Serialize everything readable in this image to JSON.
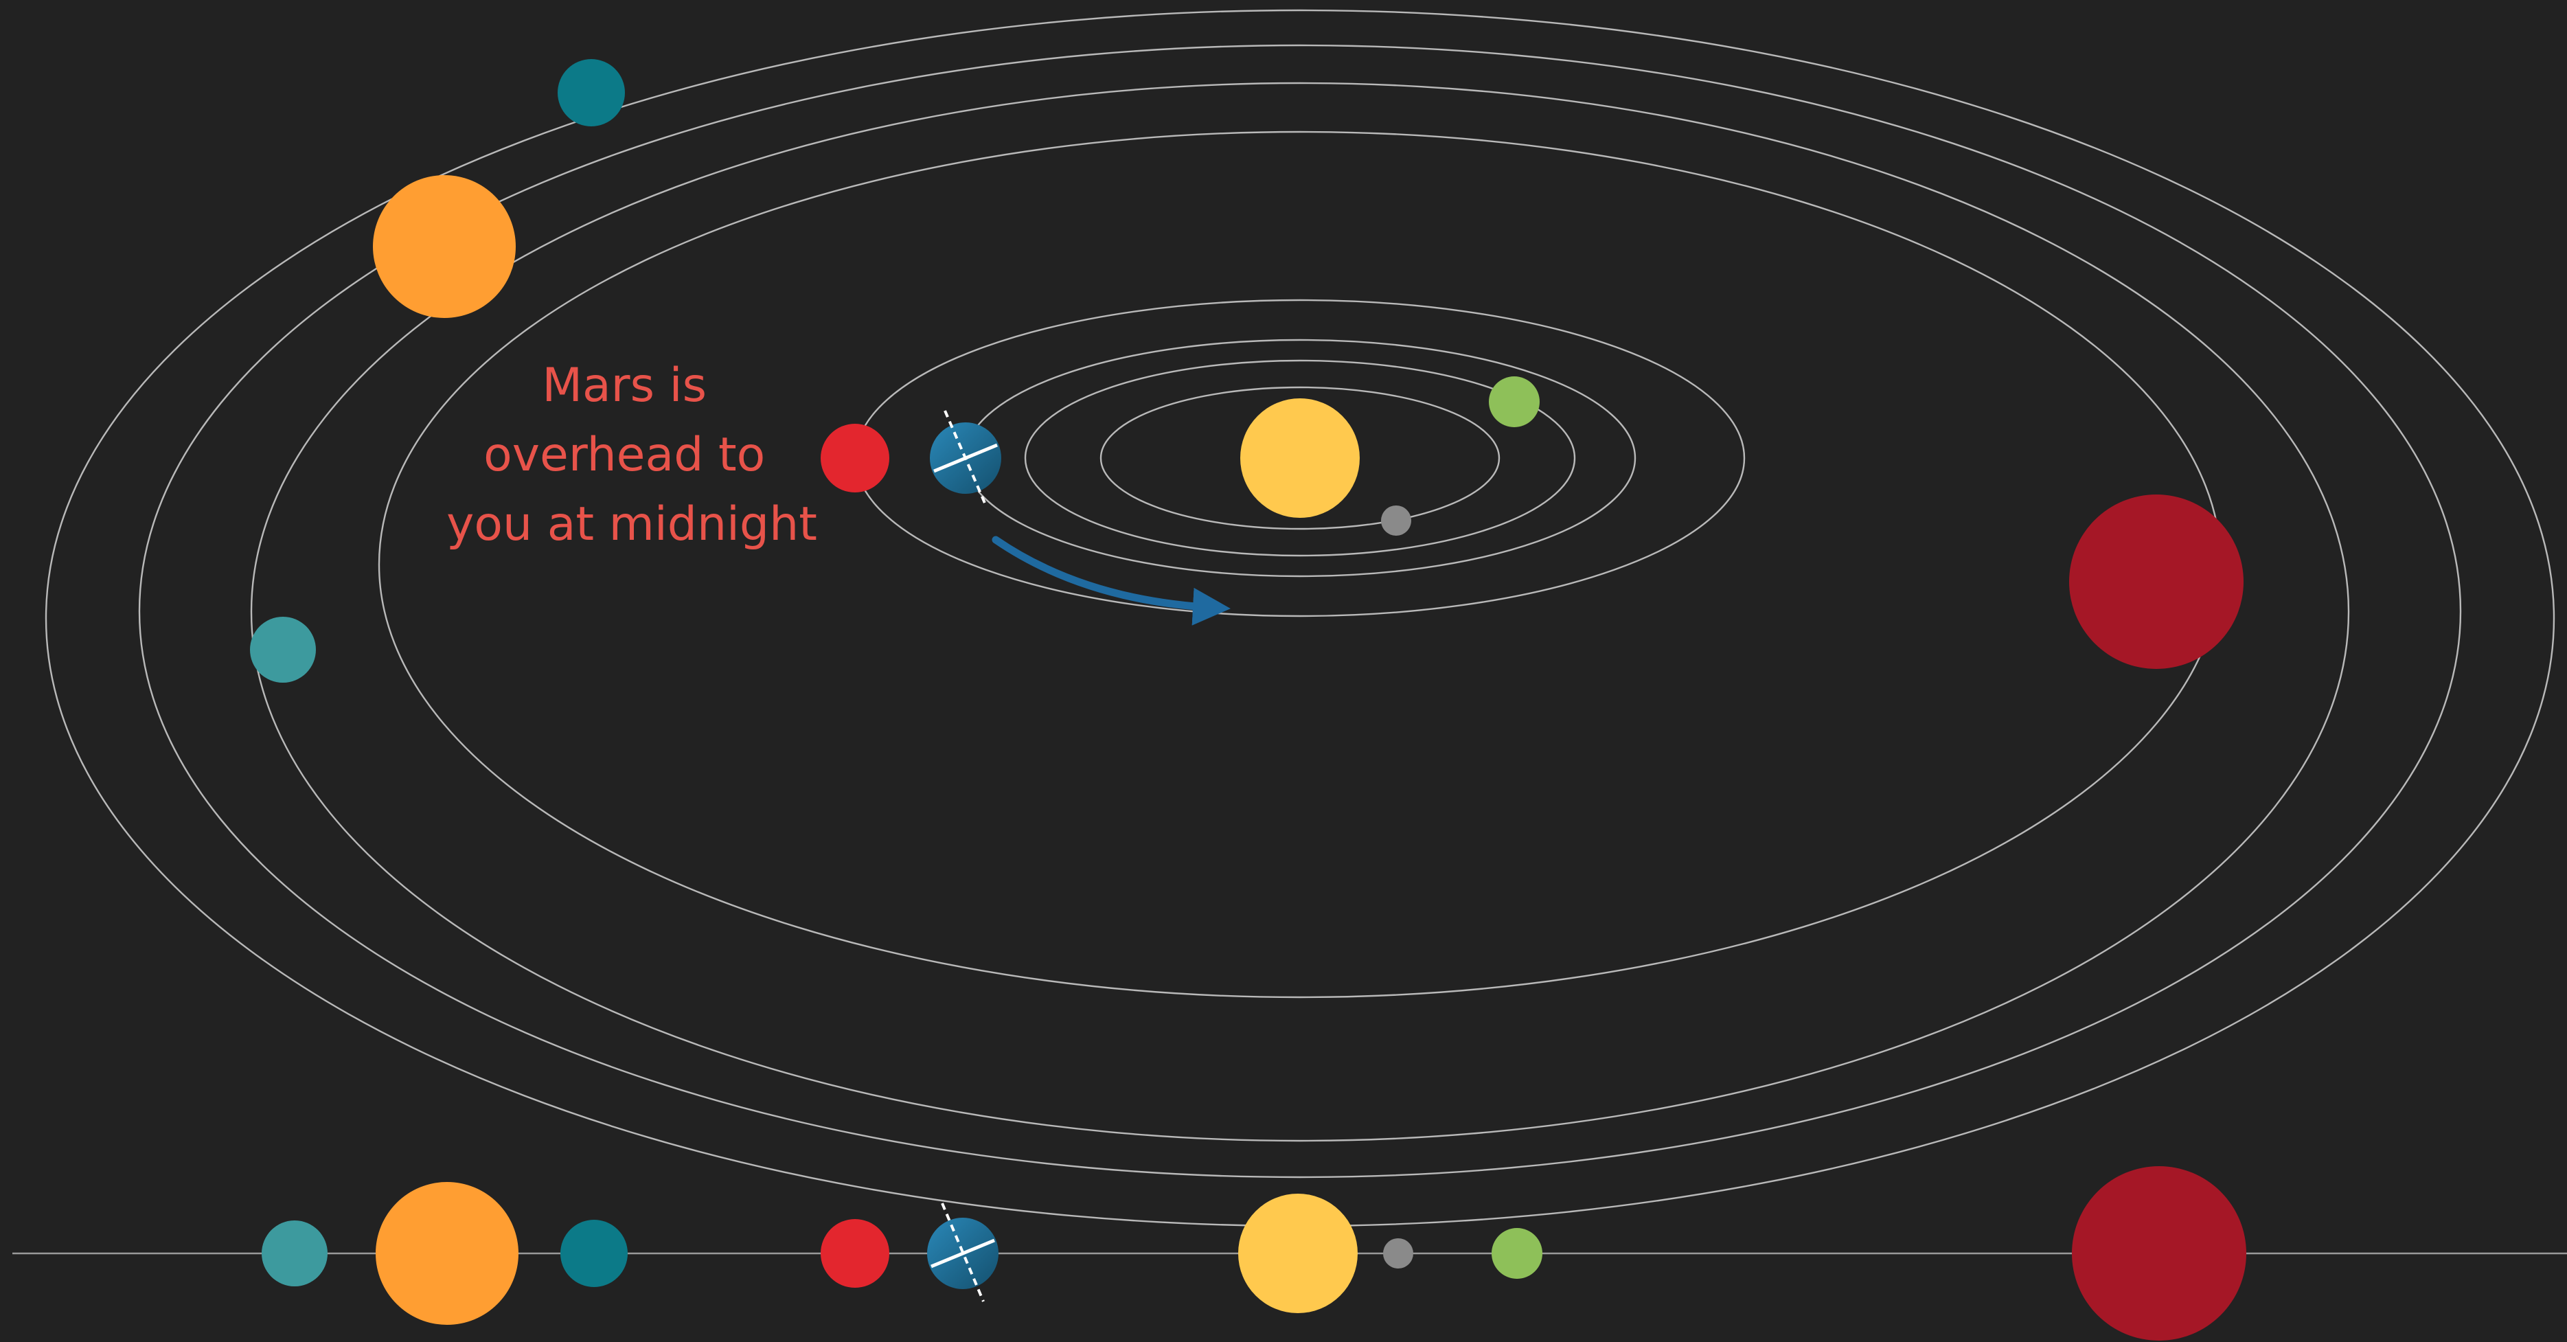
{
  "annotation": {
    "lines": [
      "Mars is",
      "overhead to",
      "you at midnight"
    ]
  },
  "colors": {
    "background": "#222222",
    "orbit": "#b9b9b9",
    "caption": "#e8534a",
    "motion_arrow": "#1f6aa0"
  },
  "bodies": [
    {
      "name": "sun",
      "color": "#ffc94e"
    },
    {
      "name": "mercury",
      "color": "#8a8a8a"
    },
    {
      "name": "venus",
      "color": "#8ec059"
    },
    {
      "name": "earth",
      "color": "#2a88b8",
      "icon": "earth-globe-icon"
    },
    {
      "name": "mars",
      "color": "#e3262e"
    },
    {
      "name": "jupiter",
      "color": "#a51726"
    },
    {
      "name": "saturn",
      "color": "#ff9e32"
    },
    {
      "name": "uranus",
      "color": "#0c7a88"
    },
    {
      "name": "neptune",
      "color": "#3d9a9e"
    }
  ]
}
